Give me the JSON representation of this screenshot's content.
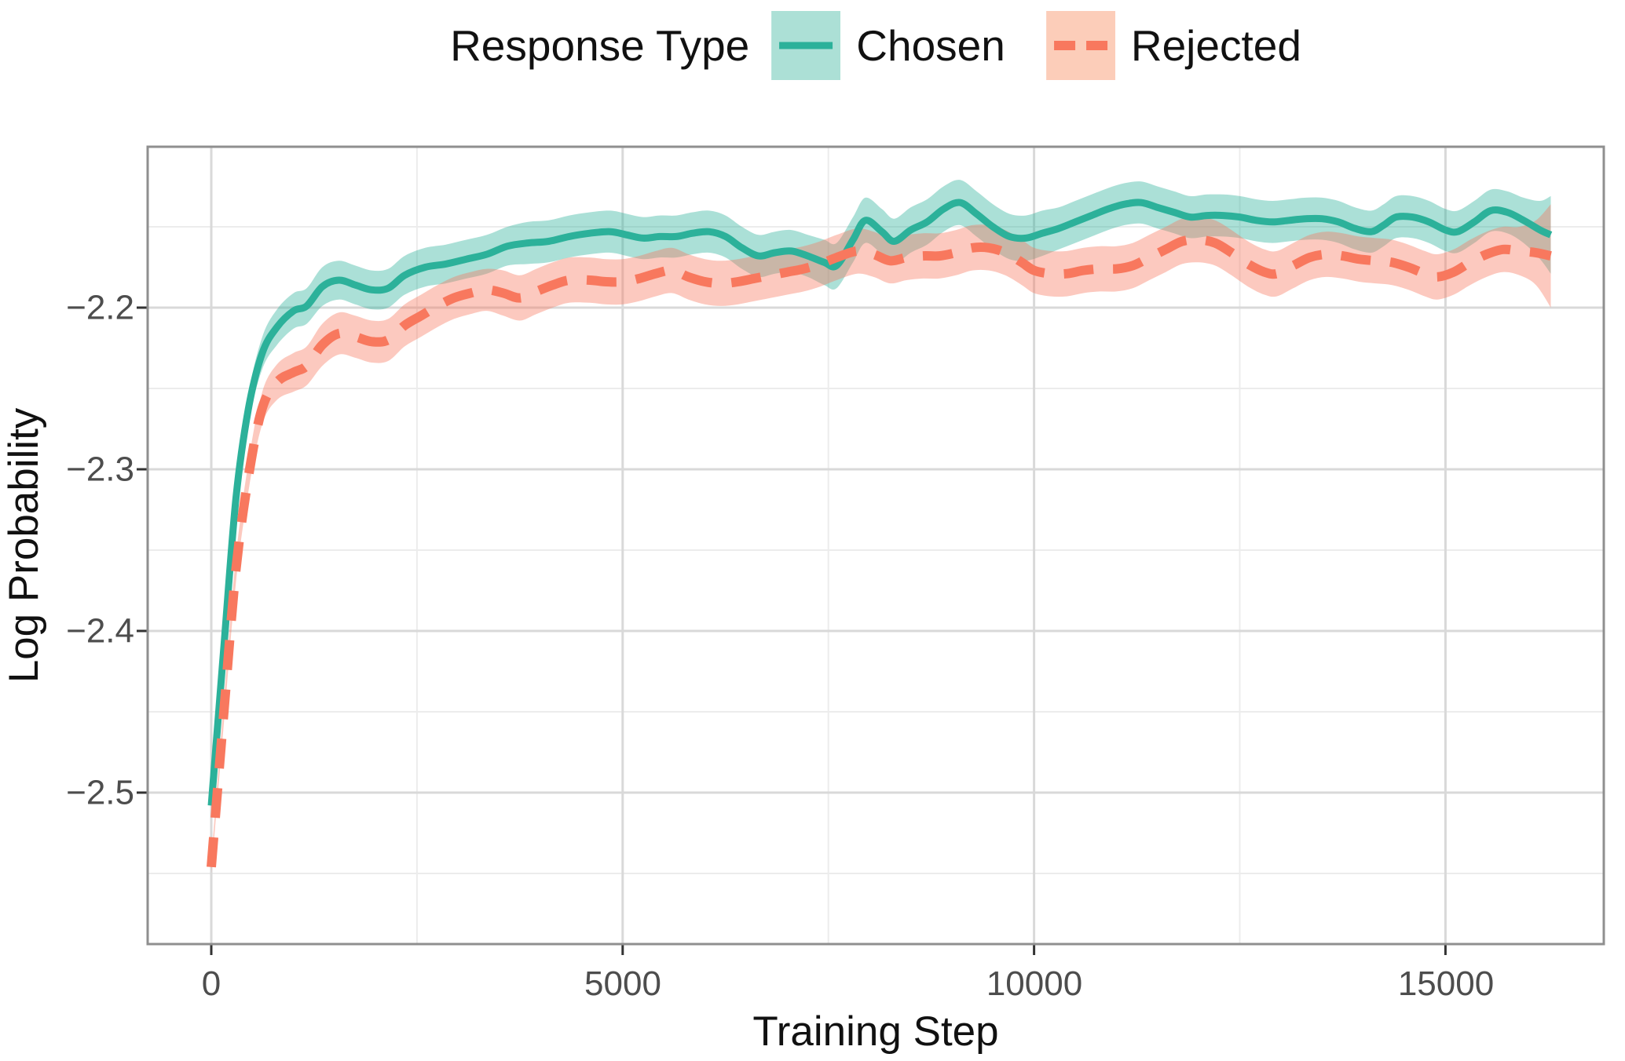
{
  "legend": {
    "title": "Response Type",
    "items": [
      {
        "label": "Chosen"
      },
      {
        "label": "Rejected"
      }
    ]
  },
  "chart_data": {
    "type": "line",
    "title": "",
    "xlabel": "Training Step",
    "ylabel": "Log Probability",
    "x_ticks": [
      0,
      5000,
      10000,
      15000
    ],
    "x_tick_labels": [
      "0",
      "5000",
      "10000",
      "15000"
    ],
    "x_minor": [
      2500,
      7500,
      12500
    ],
    "y_ticks": [
      -2.2,
      -2.3,
      -2.4,
      -2.5
    ],
    "y_tick_labels": [
      "−2.2",
      "−2.3",
      "−2.4",
      "−2.5"
    ],
    "y_minor": [
      -2.15,
      -2.25,
      -2.35,
      -2.45,
      -2.55
    ],
    "xlim": [
      -770,
      16920
    ],
    "ylim": [
      -2.594,
      -2.1
    ],
    "grid": true,
    "legend_position": "top",
    "series": [
      {
        "name": "Chosen",
        "color": "#2CB19A",
        "band_opacity": 0.4,
        "key_fill": "#ACE0D6",
        "dash": null,
        "legend_dash": null,
        "width": 9,
        "points": [
          [
            0,
            -2.508,
            0.004
          ],
          [
            150,
            -2.412,
            0.007
          ],
          [
            300,
            -2.318,
            0.008
          ],
          [
            450,
            -2.263,
            0.009
          ],
          [
            620,
            -2.228,
            0.01
          ],
          [
            800,
            -2.212,
            0.011
          ],
          [
            1000,
            -2.202,
            0.011
          ],
          [
            1160,
            -2.199,
            0.011
          ],
          [
            1350,
            -2.187,
            0.012
          ],
          [
            1550,
            -2.183,
            0.012
          ],
          [
            1750,
            -2.186,
            0.012
          ],
          [
            1950,
            -2.189,
            0.012
          ],
          [
            2150,
            -2.188,
            0.012
          ],
          [
            2350,
            -2.18,
            0.012
          ],
          [
            2600,
            -2.175,
            0.012
          ],
          [
            2850,
            -2.173,
            0.012
          ],
          [
            3100,
            -2.17,
            0.012
          ],
          [
            3350,
            -2.167,
            0.012
          ],
          [
            3600,
            -2.162,
            0.012
          ],
          [
            3850,
            -2.16,
            0.013
          ],
          [
            4100,
            -2.159,
            0.013
          ],
          [
            4350,
            -2.156,
            0.013
          ],
          [
            4600,
            -2.154,
            0.013
          ],
          [
            4850,
            -2.153,
            0.013
          ],
          [
            5050,
            -2.155,
            0.013
          ],
          [
            5250,
            -2.157,
            0.013
          ],
          [
            5450,
            -2.156,
            0.013
          ],
          [
            5650,
            -2.156,
            0.013
          ],
          [
            5850,
            -2.154,
            0.013
          ],
          [
            6050,
            -2.153,
            0.013
          ],
          [
            6250,
            -2.156,
            0.013
          ],
          [
            6450,
            -2.163,
            0.013
          ],
          [
            6650,
            -2.168,
            0.013
          ],
          [
            6850,
            -2.166,
            0.013
          ],
          [
            7050,
            -2.165,
            0.013
          ],
          [
            7250,
            -2.168,
            0.013
          ],
          [
            7450,
            -2.172,
            0.014
          ],
          [
            7600,
            -2.174,
            0.014
          ],
          [
            7800,
            -2.158,
            0.014
          ],
          [
            7950,
            -2.146,
            0.014
          ],
          [
            8150,
            -2.153,
            0.014
          ],
          [
            8300,
            -2.159,
            0.014
          ],
          [
            8500,
            -2.152,
            0.014
          ],
          [
            8700,
            -2.147,
            0.014
          ],
          [
            8900,
            -2.139,
            0.014
          ],
          [
            9100,
            -2.135,
            0.014
          ],
          [
            9300,
            -2.142,
            0.014
          ],
          [
            9500,
            -2.15,
            0.014
          ],
          [
            9700,
            -2.156,
            0.014
          ],
          [
            9900,
            -2.157,
            0.014
          ],
          [
            10100,
            -2.154,
            0.014
          ],
          [
            10300,
            -2.151,
            0.013
          ],
          [
            10500,
            -2.147,
            0.013
          ],
          [
            10700,
            -2.143,
            0.013
          ],
          [
            10900,
            -2.139,
            0.013
          ],
          [
            11100,
            -2.136,
            0.013
          ],
          [
            11300,
            -2.135,
            0.013
          ],
          [
            11500,
            -2.138,
            0.013
          ],
          [
            11700,
            -2.141,
            0.013
          ],
          [
            11900,
            -2.144,
            0.013
          ],
          [
            12100,
            -2.143,
            0.013
          ],
          [
            12300,
            -2.143,
            0.013
          ],
          [
            12500,
            -2.144,
            0.013
          ],
          [
            12700,
            -2.146,
            0.013
          ],
          [
            12900,
            -2.147,
            0.013
          ],
          [
            13100,
            -2.146,
            0.013
          ],
          [
            13300,
            -2.145,
            0.013
          ],
          [
            13500,
            -2.145,
            0.013
          ],
          [
            13700,
            -2.147,
            0.013
          ],
          [
            13900,
            -2.151,
            0.013
          ],
          [
            14100,
            -2.153,
            0.013
          ],
          [
            14250,
            -2.149,
            0.013
          ],
          [
            14400,
            -2.144,
            0.013
          ],
          [
            14600,
            -2.144,
            0.013
          ],
          [
            14800,
            -2.147,
            0.013
          ],
          [
            15000,
            -2.152,
            0.013
          ],
          [
            15150,
            -2.153,
            0.013
          ],
          [
            15350,
            -2.147,
            0.013
          ],
          [
            15550,
            -2.14,
            0.013
          ],
          [
            15750,
            -2.141,
            0.013
          ],
          [
            15950,
            -2.146,
            0.014
          ],
          [
            16150,
            -2.152,
            0.018
          ],
          [
            16280,
            -2.155,
            0.024
          ]
        ]
      },
      {
        "name": "Rejected",
        "color": "#F8785E",
        "band_opacity": 0.4,
        "key_fill": "#FCCDB9",
        "dash": "38 25",
        "legend_dash": "27 14",
        "width": 12,
        "points": [
          [
            0,
            -2.546,
            0.004
          ],
          [
            150,
            -2.452,
            0.007
          ],
          [
            300,
            -2.362,
            0.008
          ],
          [
            460,
            -2.302,
            0.009
          ],
          [
            620,
            -2.262,
            0.01
          ],
          [
            800,
            -2.246,
            0.011
          ],
          [
            1000,
            -2.24,
            0.012
          ],
          [
            1160,
            -2.236,
            0.012
          ],
          [
            1350,
            -2.223,
            0.013
          ],
          [
            1550,
            -2.216,
            0.013
          ],
          [
            1750,
            -2.218,
            0.013
          ],
          [
            1950,
            -2.221,
            0.013
          ],
          [
            2150,
            -2.22,
            0.013
          ],
          [
            2350,
            -2.211,
            0.013
          ],
          [
            2550,
            -2.205,
            0.013
          ],
          [
            2750,
            -2.199,
            0.013
          ],
          [
            2950,
            -2.194,
            0.013
          ],
          [
            3150,
            -2.191,
            0.013
          ],
          [
            3350,
            -2.189,
            0.013
          ],
          [
            3550,
            -2.191,
            0.014
          ],
          [
            3750,
            -2.194,
            0.014
          ],
          [
            3950,
            -2.19,
            0.014
          ],
          [
            4150,
            -2.186,
            0.014
          ],
          [
            4350,
            -2.183,
            0.014
          ],
          [
            4600,
            -2.183,
            0.014
          ],
          [
            4800,
            -2.184,
            0.014
          ],
          [
            5000,
            -2.184,
            0.014
          ],
          [
            5200,
            -2.182,
            0.014
          ],
          [
            5400,
            -2.179,
            0.014
          ],
          [
            5600,
            -2.177,
            0.014
          ],
          [
            5800,
            -2.181,
            0.014
          ],
          [
            6000,
            -2.184,
            0.014
          ],
          [
            6200,
            -2.185,
            0.014
          ],
          [
            6400,
            -2.184,
            0.014
          ],
          [
            6600,
            -2.182,
            0.014
          ],
          [
            6800,
            -2.18,
            0.014
          ],
          [
            7000,
            -2.178,
            0.014
          ],
          [
            7200,
            -2.176,
            0.014
          ],
          [
            7400,
            -2.173,
            0.014
          ],
          [
            7600,
            -2.169,
            0.014
          ],
          [
            7850,
            -2.165,
            0.014
          ],
          [
            8050,
            -2.167,
            0.014
          ],
          [
            8250,
            -2.171,
            0.014
          ],
          [
            8450,
            -2.169,
            0.014
          ],
          [
            8650,
            -2.168,
            0.014
          ],
          [
            8850,
            -2.168,
            0.014
          ],
          [
            9050,
            -2.166,
            0.014
          ],
          [
            9250,
            -2.163,
            0.014
          ],
          [
            9450,
            -2.163,
            0.014
          ],
          [
            9650,
            -2.166,
            0.014
          ],
          [
            9850,
            -2.172,
            0.014
          ],
          [
            10000,
            -2.177,
            0.014
          ],
          [
            10200,
            -2.179,
            0.014
          ],
          [
            10400,
            -2.179,
            0.014
          ],
          [
            10600,
            -2.177,
            0.014
          ],
          [
            10800,
            -2.176,
            0.014
          ],
          [
            11000,
            -2.176,
            0.014
          ],
          [
            11200,
            -2.174,
            0.014
          ],
          [
            11400,
            -2.169,
            0.014
          ],
          [
            11600,
            -2.164,
            0.014
          ],
          [
            11800,
            -2.159,
            0.014
          ],
          [
            12000,
            -2.158,
            0.014
          ],
          [
            12200,
            -2.16,
            0.014
          ],
          [
            12400,
            -2.166,
            0.014
          ],
          [
            12600,
            -2.173,
            0.014
          ],
          [
            12800,
            -2.178,
            0.014
          ],
          [
            12950,
            -2.179,
            0.014
          ],
          [
            13150,
            -2.174,
            0.014
          ],
          [
            13350,
            -2.169,
            0.014
          ],
          [
            13550,
            -2.167,
            0.014
          ],
          [
            13750,
            -2.168,
            0.014
          ],
          [
            13950,
            -2.17,
            0.014
          ],
          [
            14150,
            -2.171,
            0.014
          ],
          [
            14350,
            -2.172,
            0.014
          ],
          [
            14550,
            -2.175,
            0.014
          ],
          [
            14750,
            -2.179,
            0.014
          ],
          [
            14900,
            -2.181,
            0.014
          ],
          [
            15100,
            -2.178,
            0.014
          ],
          [
            15300,
            -2.172,
            0.014
          ],
          [
            15500,
            -2.167,
            0.014
          ],
          [
            15700,
            -2.164,
            0.014
          ],
          [
            15900,
            -2.165,
            0.015
          ],
          [
            16100,
            -2.166,
            0.02
          ],
          [
            16280,
            -2.168,
            0.032
          ]
        ]
      }
    ]
  }
}
